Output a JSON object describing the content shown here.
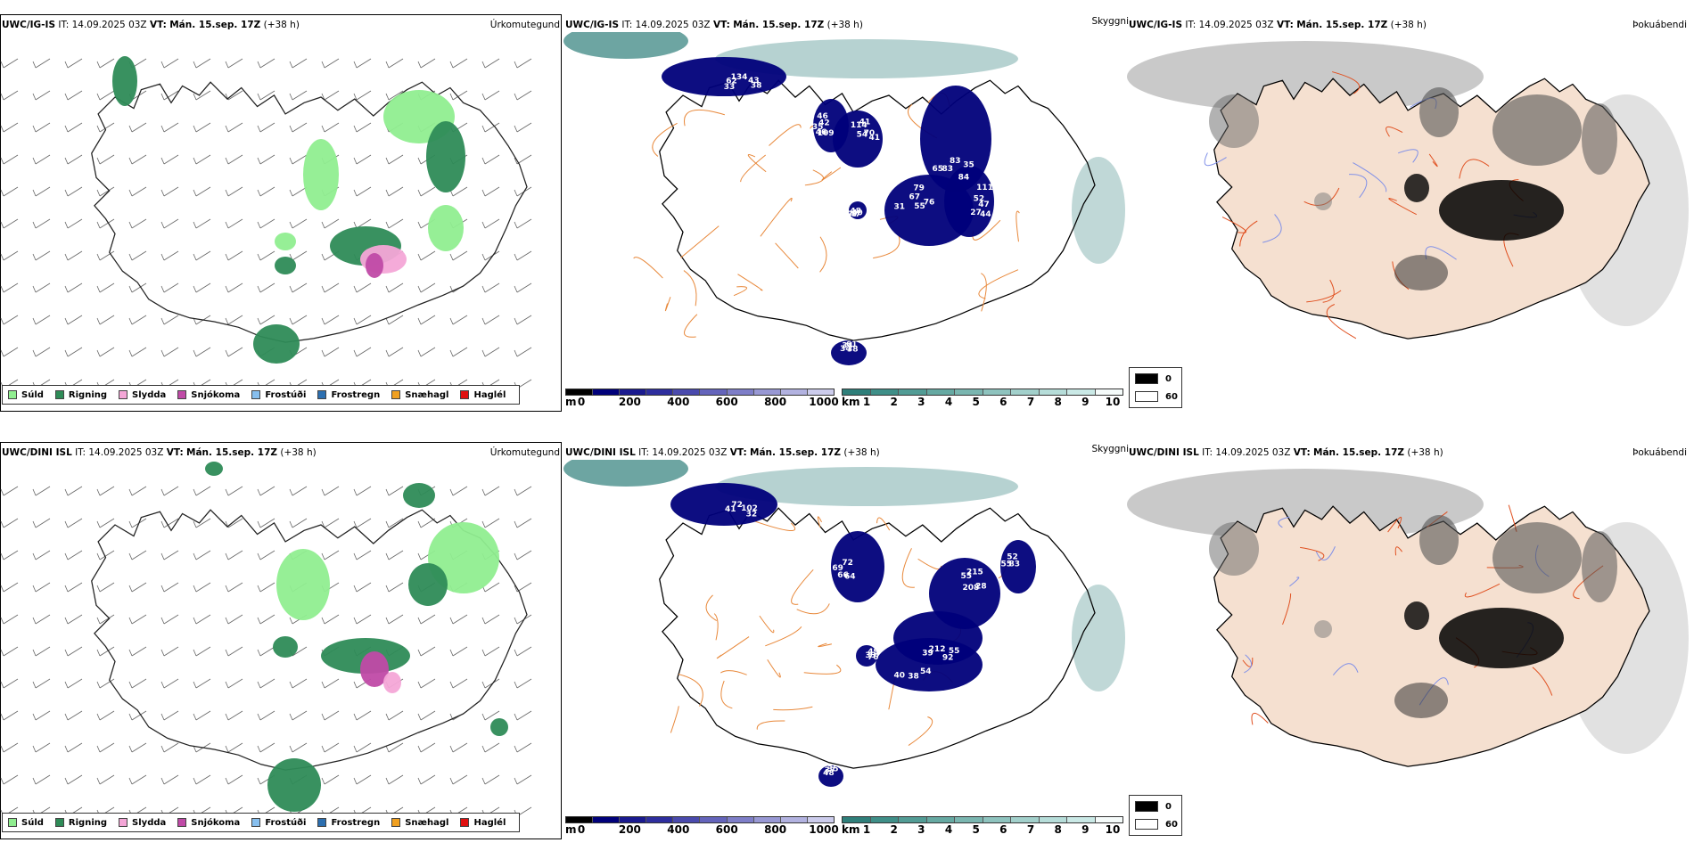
{
  "colors": {
    "suld": "#90ee90",
    "rigning": "#2e8b57",
    "slydda": "#f4a6d7",
    "snjokoma": "#c04aa7",
    "frostudi": "#87bfee",
    "frostregn": "#2c6fb0",
    "snaehagl": "#f0a020",
    "haglel": "#e01010",
    "ceiling_low": "#00007a",
    "vis_low": "#2f7f7a",
    "land_fog": "#f5e0d0",
    "roads": "#e05020"
  },
  "legend_precip": [
    {
      "label": "Súld",
      "color": "#90ee90"
    },
    {
      "label": "Rigning",
      "color": "#2e8b57"
    },
    {
      "label": "Slydda",
      "color": "#f4a6d7"
    },
    {
      "label": "Snjókoma",
      "color": "#c04aa7"
    },
    {
      "label": "Frostúði",
      "color": "#87bfee"
    },
    {
      "label": "Frostregn",
      "color": "#2c6fb0"
    },
    {
      "label": "Snæhagl",
      "color": "#f0a020"
    },
    {
      "label": "Haglél",
      "color": "#e01010"
    }
  ],
  "ceiling_scale": {
    "unit": "m",
    "ticks": [
      "0",
      "200",
      "400",
      "600",
      "800",
      "1000"
    ],
    "colors": [
      "#000000",
      "#00007a",
      "#1a1a8f",
      "#2e2e9e",
      "#4a4aad",
      "#6464bb",
      "#7e7ec8",
      "#9898d4",
      "#b2b2e0",
      "#ccccec"
    ]
  },
  "visibility_scale": {
    "unit": "km",
    "ticks": [
      "1",
      "2",
      "3",
      "4",
      "5",
      "6",
      "7",
      "8",
      "9",
      "10"
    ],
    "colors": [
      "#2f7f7a",
      "#3f8f88",
      "#529c95",
      "#66a9a2",
      "#7ab6b0",
      "#8ec3be",
      "#a2d0cb",
      "#b6ddd9",
      "#cae9e6",
      "#f5fbfa"
    ]
  },
  "fog_legend": {
    "dark": "0",
    "light": "60"
  },
  "rows": [
    {
      "model": "UWC/IG-IS",
      "it_label": "IT:",
      "it_value": "14.09.2025 03Z",
      "vt_label": "VT:",
      "vt_value": "Mán. 15.sep. 17Z",
      "lead": "(+38 h)",
      "titles": {
        "precip": "Úrkomutegund",
        "visibility": "Skyggni",
        "fog": "Þokuábendi"
      },
      "cloud_labels": [
        "134",
        "109",
        "114",
        "35",
        "31",
        "111",
        "40",
        "34",
        "43",
        "46",
        "41",
        "84",
        "55",
        "52",
        "47",
        "34",
        "38",
        "35",
        "54",
        "83",
        "67",
        "47",
        "77",
        "61",
        "62",
        "42",
        "70",
        "83",
        "79",
        "44",
        "48",
        "38",
        "33",
        "46",
        "41",
        "65",
        "76",
        "27"
      ]
    },
    {
      "model": "UWC/DINI ISL",
      "it_label": "IT:",
      "it_value": "14.09.2025 03Z",
      "vt_label": "VT:",
      "vt_value": "Mán. 15.sep. 17Z",
      "lead": "(+38 h)",
      "titles": {
        "precip": "Úrkomutegund",
        "visibility": "Skyggni",
        "fog": "Þokuábendi"
      },
      "cloud_labels": [
        "72",
        "64",
        "55",
        "55",
        "55",
        "49",
        "54",
        "48",
        "102",
        "66",
        "215",
        "92",
        "83",
        "33",
        "38",
        "37",
        "32",
        "69",
        "208",
        "212",
        "52",
        "76",
        "40",
        "35",
        "41",
        "72",
        "28",
        "39"
      ]
    }
  ]
}
